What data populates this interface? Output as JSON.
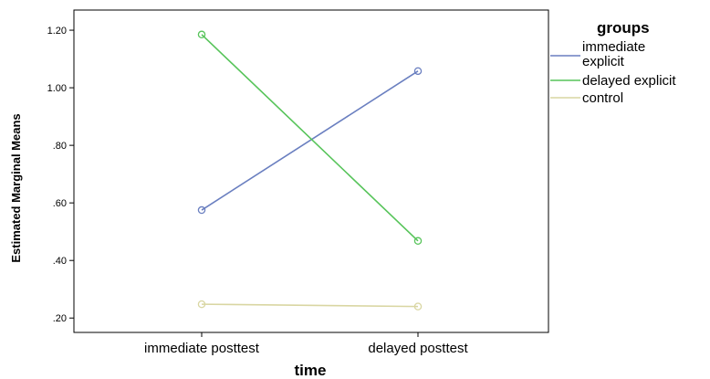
{
  "chart_data": {
    "type": "line",
    "xlabel": "time",
    "ylabel": "Estimated Marginal Means",
    "categories": [
      "immediate posttest",
      "delayed posttest"
    ],
    "ylim": [
      0.15,
      1.27
    ],
    "yticks": [
      0.2,
      0.4,
      0.6,
      0.8,
      1.0,
      1.2
    ],
    "ytick_labels": [
      ".20",
      ".40",
      ".60",
      ".80",
      "1.00",
      "1.20"
    ],
    "grid": false,
    "legend": {
      "title": "groups",
      "placement": "right",
      "labels": [
        "immediate explicit",
        "delayed explicit",
        "control"
      ]
    },
    "series": [
      {
        "name": "immediate explicit",
        "color": "#6a7fc0",
        "values": [
          0.575,
          1.058
        ]
      },
      {
        "name": "delayed explicit",
        "color": "#57c45a",
        "values": [
          1.185,
          0.468
        ]
      },
      {
        "name": "control",
        "color": "#d9d6a2",
        "values": [
          0.248,
          0.24
        ]
      }
    ]
  }
}
